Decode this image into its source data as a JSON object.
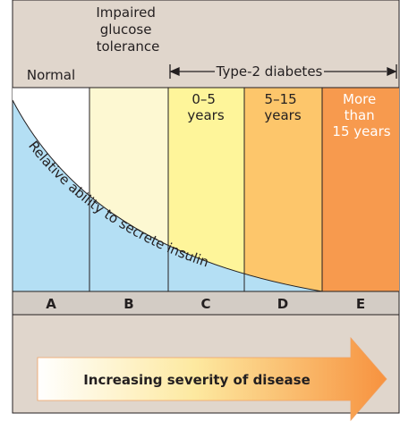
{
  "header": {
    "normal": "Normal",
    "impaired": [
      "Impaired",
      "glucose",
      "tolerance"
    ],
    "diabetes": "Type-2 diabetes"
  },
  "columns": [
    {
      "letter": "A"
    },
    {
      "letter": "B"
    },
    {
      "letter": "C",
      "subtitle": [
        "0–5",
        "years"
      ]
    },
    {
      "letter": "D",
      "subtitle": [
        "5–15",
        "years"
      ]
    },
    {
      "letter": "E",
      "subtitle": [
        "More",
        "than",
        "15 years"
      ]
    }
  ],
  "curve_label": "Relative ability to secrete insulin",
  "arrow_label": "Increasing severity of disease"
}
